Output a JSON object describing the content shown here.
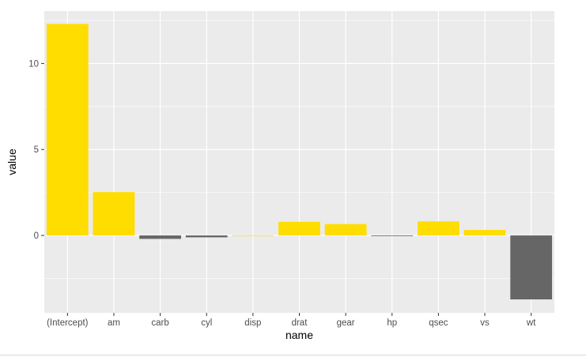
{
  "chart_data": {
    "type": "bar",
    "xlabel": "name",
    "ylabel": "value",
    "categories": [
      "(Intercept)",
      "am",
      "carb",
      "cyl",
      "disp",
      "drat",
      "gear",
      "hp",
      "qsec",
      "vs",
      "wt"
    ],
    "values": [
      12.3,
      2.52,
      -0.2,
      -0.11,
      0.01,
      0.79,
      0.66,
      -0.02,
      0.82,
      0.32,
      -3.72
    ],
    "ylim": [
      -4.5,
      13.05
    ],
    "yticks": [
      0,
      5,
      10
    ],
    "yminor": [
      -2.5,
      2.5,
      7.5,
      12.5
    ],
    "grid": true,
    "legend": "none",
    "colors": {
      "positive": "#ffdd00",
      "negative": "#666666",
      "panel": "#ebebeb",
      "grid": "#ffffff"
    }
  }
}
